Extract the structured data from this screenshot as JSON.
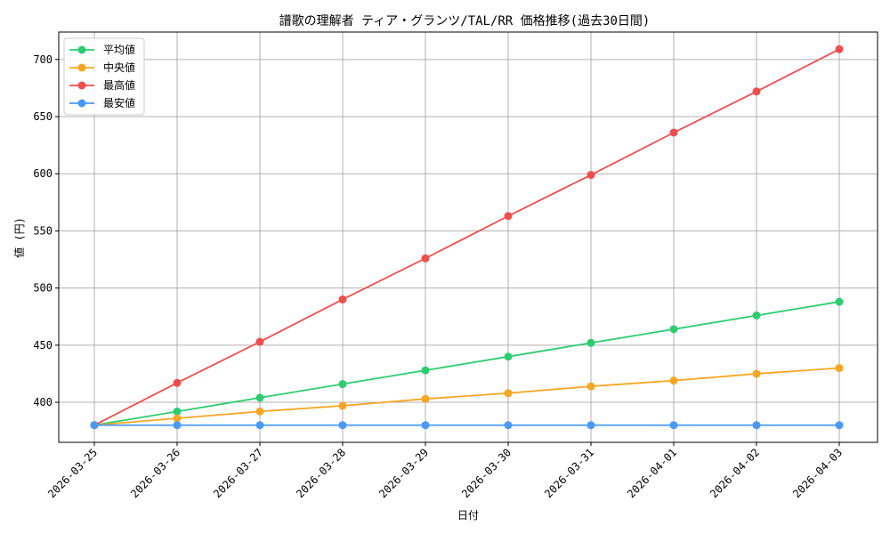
{
  "chart_data": {
    "type": "line",
    "title": "譜歌の理解者 ティア・グランツ/TAL/RR 価格推移(過去30日間)",
    "xlabel": "日付",
    "ylabel": "値 (円)",
    "ylim": [
      365,
      724
    ],
    "yticks": [
      400,
      450,
      500,
      550,
      600,
      650,
      700
    ],
    "grid": true,
    "legend_position": "top-left",
    "categories": [
      "2026-03-25",
      "2026-03-26",
      "2026-03-27",
      "2026-03-28",
      "2026-03-29",
      "2026-03-30",
      "2026-03-31",
      "2026-04-01",
      "2026-04-02",
      "2026-04-03"
    ],
    "series": [
      {
        "name": "平均値",
        "color": "#2ecc71",
        "values": [
          380,
          392,
          404,
          416,
          428,
          440,
          452,
          464,
          476,
          488
        ]
      },
      {
        "name": "中央値",
        "color": "#f5a623",
        "values": [
          380,
          386,
          392,
          397,
          403,
          408,
          414,
          419,
          425,
          430
        ]
      },
      {
        "name": "最高値",
        "color": "#f04e4e",
        "values": [
          380,
          417,
          453,
          490,
          526,
          563,
          599,
          636,
          672,
          709
        ]
      },
      {
        "name": "最安値",
        "color": "#4a9af5",
        "values": [
          380,
          380,
          380,
          380,
          380,
          380,
          380,
          380,
          380,
          380
        ]
      }
    ]
  }
}
